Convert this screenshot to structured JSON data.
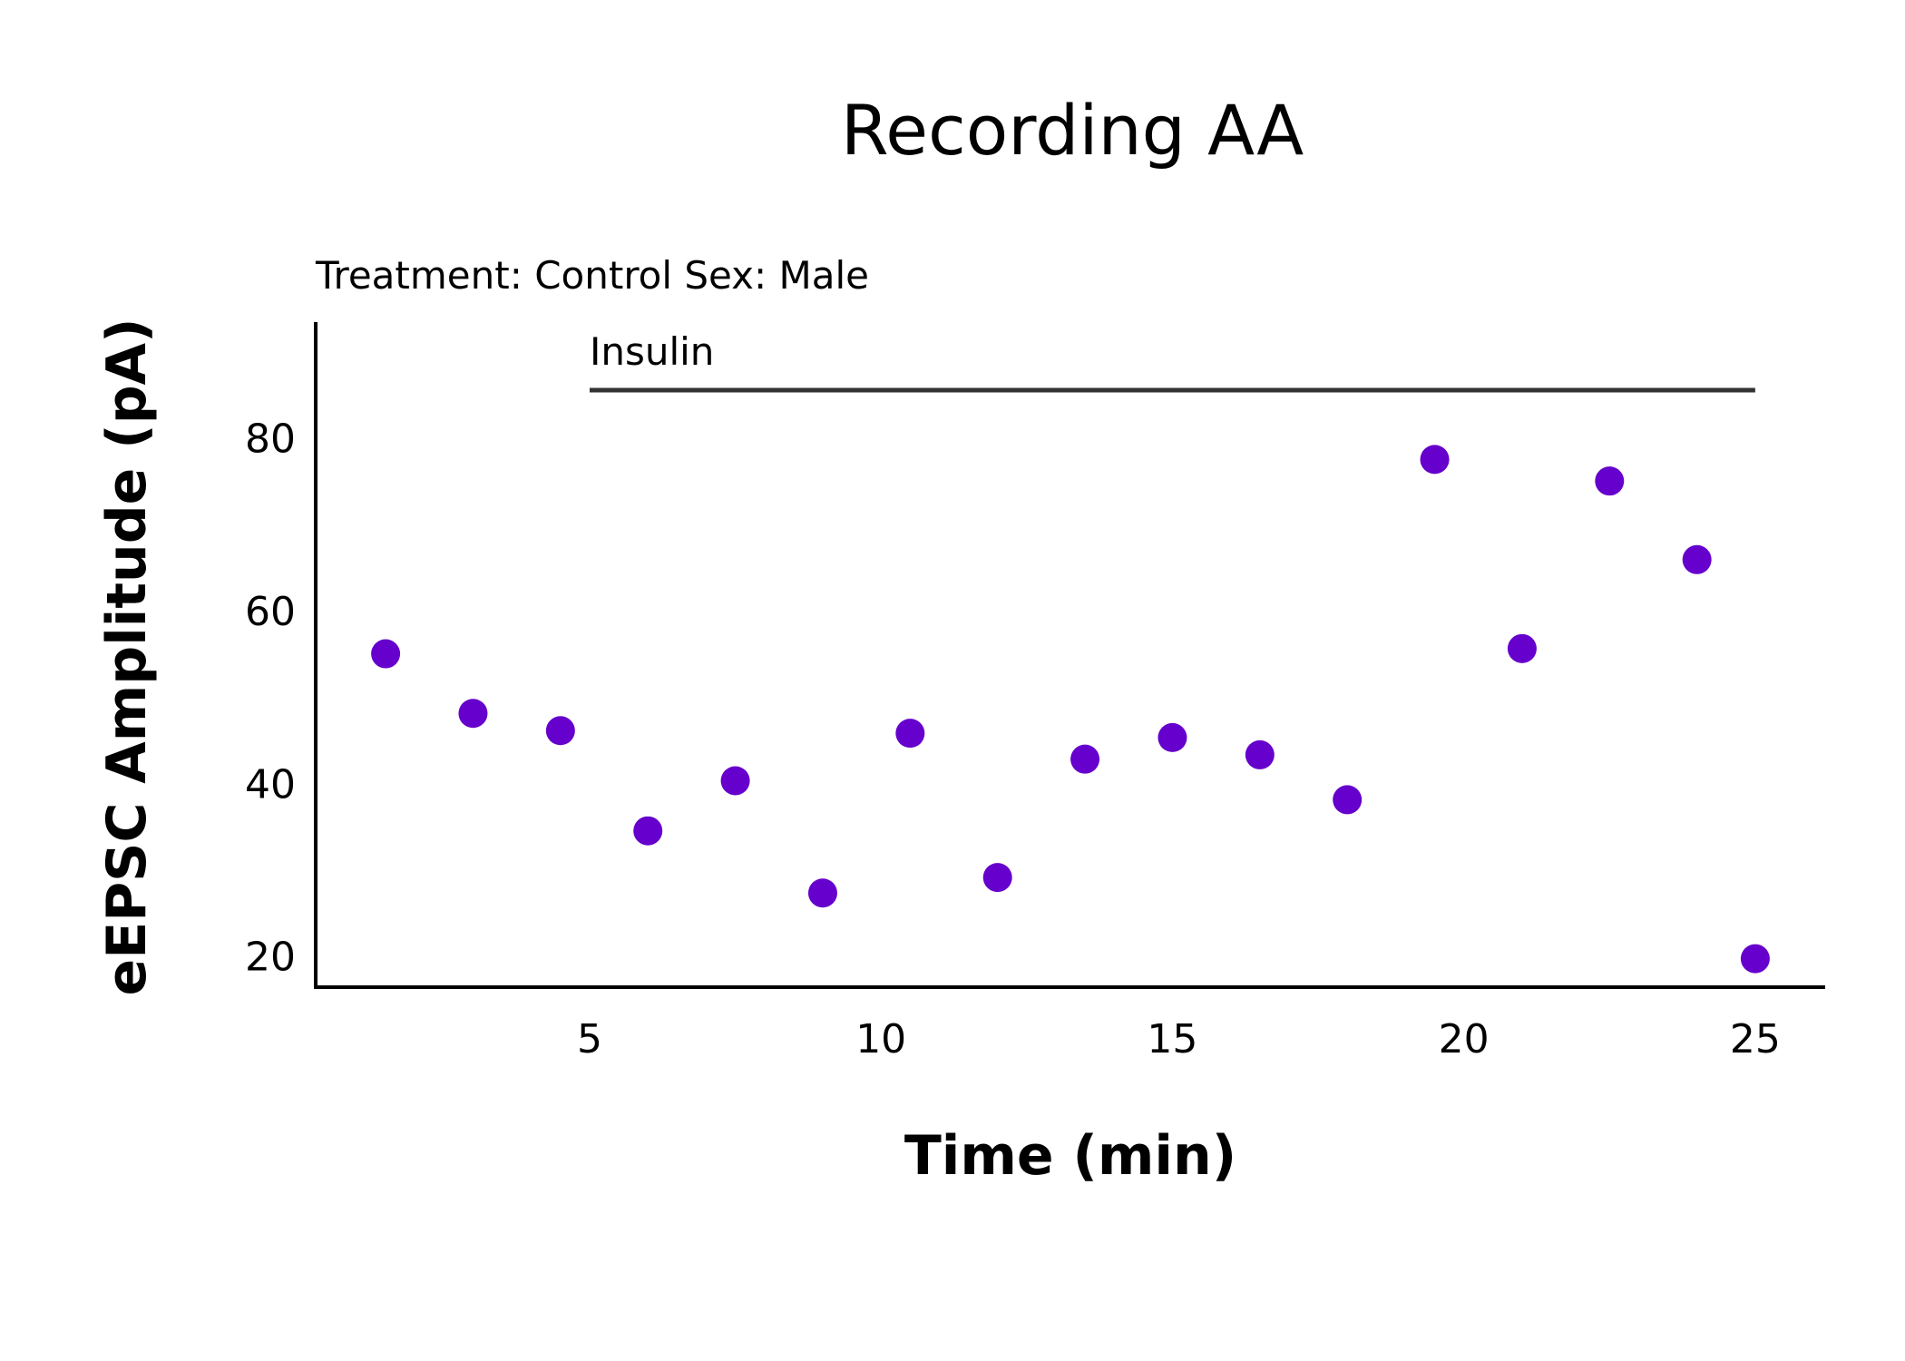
{
  "chart_data": {
    "type": "scatter",
    "title": "Recording AA",
    "subtitle": "Treatment: Control  Sex: Male",
    "xlabel": "Time (min)",
    "ylabel": "eEPSC Amplitude (pA)",
    "xlim": [
      0.3,
      26.2
    ],
    "ylim": [
      16.5,
      93.5
    ],
    "xticks": [
      5,
      10,
      15,
      20,
      25
    ],
    "yticks": [
      20,
      40,
      60,
      80
    ],
    "grid": false,
    "legend": "none",
    "marker_color": "#6600cc",
    "annotations": [
      {
        "label": "Insulin",
        "x_start": 5,
        "x_end": 25
      }
    ],
    "series": [
      {
        "x": [
          1.5,
          3,
          4.5,
          6,
          7.5,
          9,
          10.5,
          12,
          13.5,
          15,
          16.5,
          18,
          19.5,
          21,
          22.5,
          24,
          25
        ],
        "y": [
          55.1,
          48.2,
          46.2,
          34.6,
          40.4,
          27.4,
          45.9,
          29.2,
          42.9,
          45.4,
          43.4,
          38.2,
          77.6,
          55.7,
          75.1,
          66.0,
          19.8
        ]
      }
    ]
  }
}
